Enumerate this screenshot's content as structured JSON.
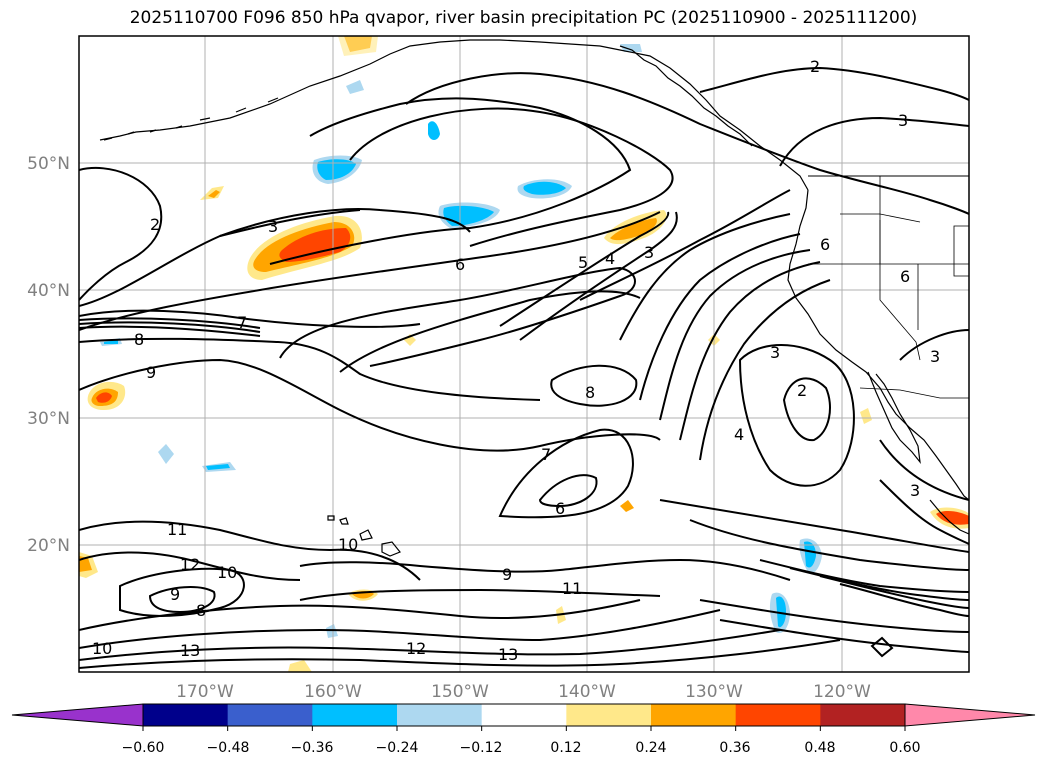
{
  "title": "2025110700 F096 850 hPa qvapor, river basin precipitation PC (2025110900 - 2025111200)",
  "latitude_labels": [
    "50°N",
    "40°N",
    "30°N",
    "20°N"
  ],
  "longitude_labels": [
    "170°W",
    "160°W",
    "150°W",
    "140°W",
    "130°W",
    "120°W"
  ],
  "contour_labels": [
    "2",
    "3",
    "2",
    "3",
    "6",
    "5",
    "4",
    "3",
    "6",
    "6",
    "7",
    "8",
    "9",
    "8",
    "7",
    "6",
    "3",
    "2",
    "4",
    "3",
    "3",
    "11",
    "12",
    "10",
    "10",
    "9",
    "8",
    "9",
    "11",
    "12",
    "13",
    "13",
    "10"
  ],
  "colorbar": {
    "tick_labels": [
      "−0.60",
      "−0.48",
      "−0.36",
      "−0.24",
      "−0.12",
      "0.12",
      "0.24",
      "0.36",
      "0.48",
      "0.60"
    ],
    "colors": [
      "#9932cc",
      "#00008b",
      "#3a5fcd",
      "#00bfff",
      "#add8f0",
      "#ffffff",
      "#ffe88a",
      "#ffa500",
      "#ff4500",
      "#b22222",
      "#ff88aa"
    ]
  }
}
